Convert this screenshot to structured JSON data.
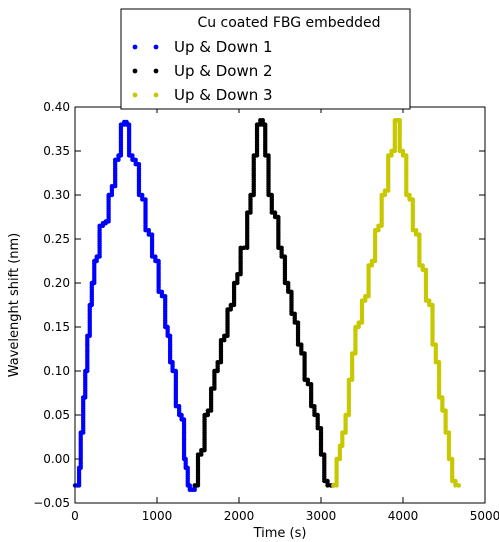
{
  "chart_data": {
    "type": "scatter",
    "xlabel": "Time (s)",
    "ylabel": "Wavelenght shift (nm)",
    "xlim": [
      0,
      5000
    ],
    "ylim": [
      -0.05,
      0.4
    ],
    "xticks": [
      0,
      1000,
      2000,
      3000,
      4000,
      5000
    ],
    "yticks": [
      -0.05,
      0.0,
      0.05,
      0.1,
      0.15,
      0.2,
      0.25,
      0.3,
      0.35,
      0.4
    ],
    "xtick_labels": [
      "0",
      "1000",
      "2000",
      "3000",
      "4000",
      "5000"
    ],
    "ytick_labels": [
      "−0.05",
      "0.00",
      "0.05",
      "0.10",
      "0.15",
      "0.20",
      "0.25",
      "0.30",
      "0.35",
      "0.40"
    ],
    "grid": false,
    "legend": {
      "placement": "top",
      "title": "Cu coated FBG embedded"
    },
    "series": [
      {
        "name": "Up & Down 1",
        "color": "#0000ff",
        "points": [
          [
            0,
            -0.03
          ],
          [
            30,
            -0.03
          ],
          [
            50,
            -0.01
          ],
          [
            70,
            0.03
          ],
          [
            100,
            0.07
          ],
          [
            125,
            0.1
          ],
          [
            150,
            0.14
          ],
          [
            180,
            0.175
          ],
          [
            205,
            0.2
          ],
          [
            235,
            0.225
          ],
          [
            265,
            0.23
          ],
          [
            300,
            0.265
          ],
          [
            340,
            0.268
          ],
          [
            375,
            0.27
          ],
          [
            410,
            0.3
          ],
          [
            450,
            0.31
          ],
          [
            490,
            0.34
          ],
          [
            530,
            0.345
          ],
          [
            560,
            0.38
          ],
          [
            600,
            0.383
          ],
          [
            630,
            0.38
          ],
          [
            660,
            0.345
          ],
          [
            700,
            0.34
          ],
          [
            740,
            0.335
          ],
          [
            780,
            0.3
          ],
          [
            820,
            0.295
          ],
          [
            860,
            0.26
          ],
          [
            900,
            0.255
          ],
          [
            940,
            0.23
          ],
          [
            980,
            0.225
          ],
          [
            1020,
            0.19
          ],
          [
            1060,
            0.185
          ],
          [
            1100,
            0.15
          ],
          [
            1130,
            0.14
          ],
          [
            1160,
            0.11
          ],
          [
            1190,
            0.1
          ],
          [
            1230,
            0.06
          ],
          [
            1270,
            0.05
          ],
          [
            1300,
            0.045
          ],
          [
            1330,
            0.0
          ],
          [
            1350,
            -0.01
          ],
          [
            1375,
            -0.03
          ],
          [
            1400,
            -0.035
          ],
          [
            1430,
            -0.035
          ],
          [
            1460,
            -0.03
          ]
        ]
      },
      {
        "name": "Up & Down 2",
        "color": "#000000",
        "points": [
          [
            1460,
            -0.03
          ],
          [
            1500,
            0.005
          ],
          [
            1540,
            0.01
          ],
          [
            1580,
            0.05
          ],
          [
            1620,
            0.055
          ],
          [
            1660,
            0.08
          ],
          [
            1700,
            0.1
          ],
          [
            1740,
            0.11
          ],
          [
            1780,
            0.135
          ],
          [
            1820,
            0.14
          ],
          [
            1860,
            0.17
          ],
          [
            1900,
            0.175
          ],
          [
            1940,
            0.2
          ],
          [
            1980,
            0.21
          ],
          [
            2020,
            0.24
          ],
          [
            2060,
            0.24
          ],
          [
            2100,
            0.28
          ],
          [
            2140,
            0.3
          ],
          [
            2180,
            0.345
          ],
          [
            2220,
            0.38
          ],
          [
            2260,
            0.385
          ],
          [
            2290,
            0.38
          ],
          [
            2320,
            0.345
          ],
          [
            2360,
            0.3
          ],
          [
            2400,
            0.28
          ],
          [
            2440,
            0.275
          ],
          [
            2480,
            0.24
          ],
          [
            2520,
            0.23
          ],
          [
            2560,
            0.2
          ],
          [
            2600,
            0.19
          ],
          [
            2640,
            0.165
          ],
          [
            2680,
            0.155
          ],
          [
            2720,
            0.13
          ],
          [
            2760,
            0.12
          ],
          [
            2800,
            0.09
          ],
          [
            2840,
            0.085
          ],
          [
            2880,
            0.06
          ],
          [
            2920,
            0.05
          ],
          [
            2960,
            0.035
          ],
          [
            3000,
            0.005
          ],
          [
            3040,
            -0.025
          ],
          [
            3080,
            -0.03
          ],
          [
            3120,
            -0.03
          ],
          [
            3150,
            -0.03
          ]
        ]
      },
      {
        "name": "Up & Down 3",
        "color": "#c8c800",
        "points": [
          [
            3150,
            -0.03
          ],
          [
            3190,
            0.0
          ],
          [
            3230,
            0.015
          ],
          [
            3260,
            0.03
          ],
          [
            3300,
            0.05
          ],
          [
            3340,
            0.09
          ],
          [
            3380,
            0.12
          ],
          [
            3420,
            0.15
          ],
          [
            3460,
            0.155
          ],
          [
            3500,
            0.18
          ],
          [
            3540,
            0.185
          ],
          [
            3580,
            0.22
          ],
          [
            3620,
            0.225
          ],
          [
            3660,
            0.26
          ],
          [
            3700,
            0.265
          ],
          [
            3740,
            0.3
          ],
          [
            3780,
            0.305
          ],
          [
            3820,
            0.345
          ],
          [
            3860,
            0.35
          ],
          [
            3900,
            0.385
          ],
          [
            3930,
            0.385
          ],
          [
            3960,
            0.35
          ],
          [
            4000,
            0.345
          ],
          [
            4040,
            0.3
          ],
          [
            4080,
            0.295
          ],
          [
            4120,
            0.26
          ],
          [
            4160,
            0.255
          ],
          [
            4200,
            0.22
          ],
          [
            4240,
            0.215
          ],
          [
            4280,
            0.18
          ],
          [
            4320,
            0.175
          ],
          [
            4360,
            0.13
          ],
          [
            4400,
            0.11
          ],
          [
            4440,
            0.07
          ],
          [
            4480,
            0.055
          ],
          [
            4520,
            0.03
          ],
          [
            4560,
            0.0
          ],
          [
            4600,
            -0.025
          ],
          [
            4640,
            -0.03
          ],
          [
            4680,
            -0.03
          ]
        ]
      }
    ]
  }
}
